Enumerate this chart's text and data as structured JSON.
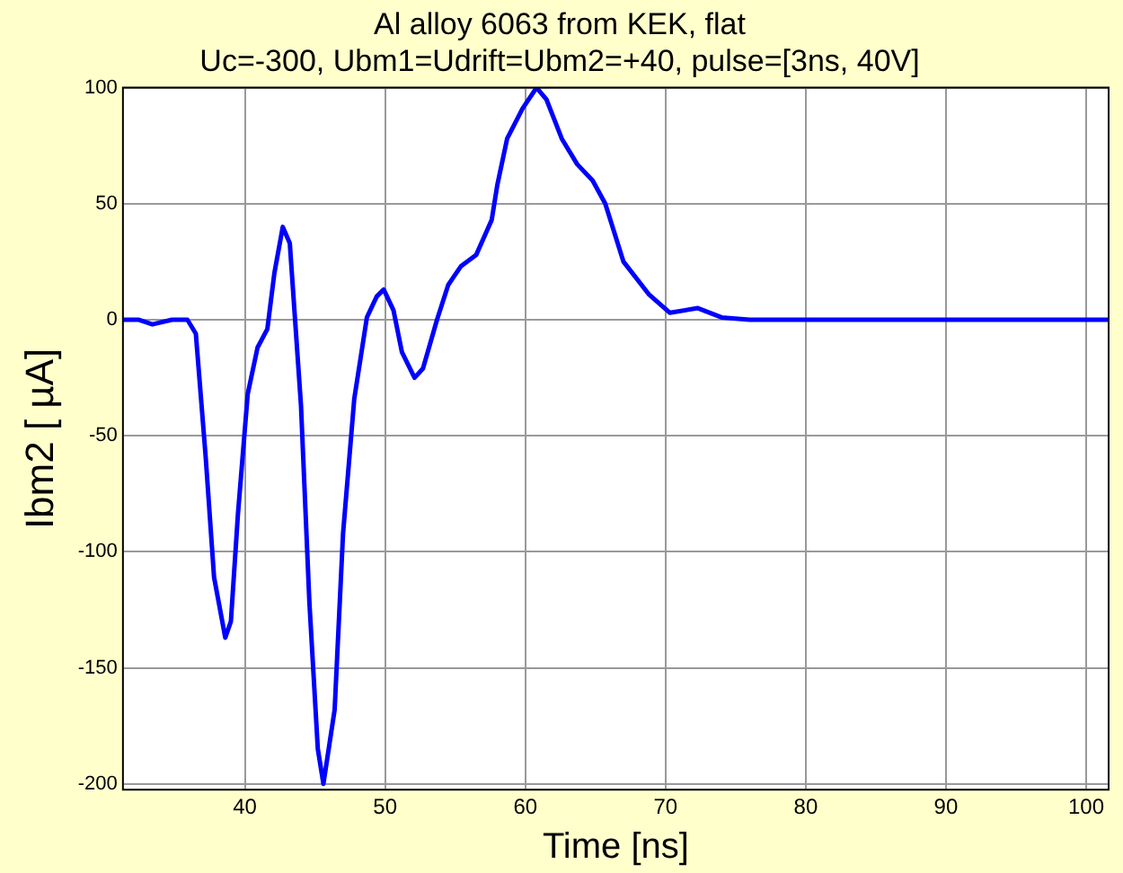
{
  "chart_data": {
    "type": "line",
    "title": "Al alloy 6063 from KEK, flat",
    "subtitle": "Uc=-300, Ubm1=Udrift=Ubm2=+40, pulse=[3ns, 40V]",
    "xlabel": "Time [ns]",
    "ylabel": "Ibm2 [ µA]",
    "x": [
      31.3,
      32.4,
      33.4,
      34.8,
      35.9,
      36.5,
      37.2,
      37.8,
      38.6,
      39.0,
      39.5,
      40.2,
      40.9,
      41.6,
      42.1,
      42.7,
      43.2,
      44.0,
      44.6,
      45.2,
      45.6,
      46.4,
      47.0,
      47.8,
      48.7,
      49.4,
      49.9,
      50.6,
      51.2,
      52.1,
      52.7,
      53.7,
      54.5,
      55.4,
      56.5,
      57.6,
      58.0,
      58.7,
      59.8,
      60.8,
      61.5,
      62.6,
      63.7,
      64.8,
      65.7,
      67.0,
      68.8,
      70.3,
      72.3,
      74.0,
      76,
      80,
      85,
      90,
      95,
      100,
      101.6
    ],
    "series": [
      {
        "color": "#0000ff",
        "values": [
          0,
          0,
          -2,
          0,
          0,
          -6,
          -59,
          -111,
          -137,
          -130,
          -84,
          -32,
          -12,
          -4,
          20,
          40,
          33,
          -37,
          -122,
          -185,
          -200,
          -168,
          -92,
          -34,
          1,
          10,
          13,
          4,
          -14,
          -25,
          -21,
          0,
          15,
          23,
          28,
          43,
          58,
          78,
          91,
          100,
          95,
          78,
          67,
          60,
          50,
          25,
          11,
          3,
          5,
          1,
          0,
          0,
          0,
          0,
          0,
          0,
          0
        ]
      }
    ],
    "xlim": [
      31.3,
      101.6
    ],
    "ylim": [
      -202.5,
      100
    ],
    "xticks": [
      40,
      50,
      60,
      70,
      80,
      90,
      100
    ],
    "yticks": [
      -200,
      -150,
      -100,
      -50,
      0,
      50,
      100
    ],
    "grid": true,
    "marker": "none",
    "line_style": "solid"
  }
}
